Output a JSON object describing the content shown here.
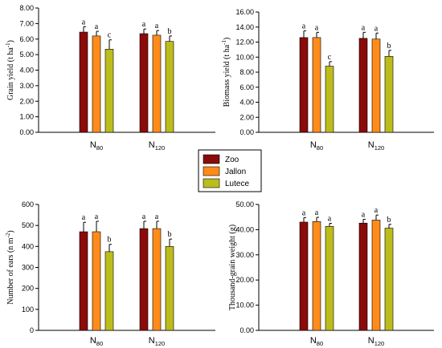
{
  "colors": {
    "Zoo": "#8b0a0a",
    "Jallon": "#ff8c1a",
    "Lutece": "#bcbc1c",
    "error_bar": "#000000",
    "axis": "#000000"
  },
  "legend": {
    "entries": [
      "Zoo",
      "Jallon",
      "Lutece"
    ],
    "placement": "center"
  },
  "chart_data": [
    {
      "type": "bar",
      "panel": "top-left",
      "ylabel": {
        "main": "Grain yield (t ha",
        "sup": "-1",
        "end": ")"
      },
      "ylim": [
        0,
        8
      ],
      "yticks": [
        "0.00",
        "1.00",
        "2.00",
        "3.00",
        "4.00",
        "5.00",
        "6.00",
        "7.00",
        "8.00"
      ],
      "categories": [
        {
          "main": "N",
          "sub": "80"
        },
        {
          "main": "N",
          "sub": "120"
        }
      ],
      "series": [
        {
          "name": "Zoo",
          "values": [
            6.45,
            6.35
          ],
          "errors": [
            0.35,
            0.3
          ],
          "labels": [
            "a",
            "a"
          ]
        },
        {
          "name": "Jallon",
          "values": [
            6.2,
            6.25
          ],
          "errors": [
            0.3,
            0.3
          ],
          "labels": [
            "a",
            "a"
          ]
        },
        {
          "name": "Lutece",
          "values": [
            5.35,
            5.85
          ],
          "errors": [
            0.6,
            0.35
          ],
          "labels": [
            "c",
            "b"
          ]
        }
      ]
    },
    {
      "type": "bar",
      "panel": "top-right",
      "ylabel": {
        "main": "Biomass yield (t ha",
        "sup": "-1",
        "end": ")"
      },
      "ylim": [
        0,
        16
      ],
      "yticks": [
        "0.00",
        "2.00",
        "4.00",
        "6.00",
        "8.00",
        "10.00",
        "12.00",
        "14.00",
        "16.00"
      ],
      "categories": [
        {
          "main": "N",
          "sub": "80"
        },
        {
          "main": "N",
          "sub": "120"
        }
      ],
      "series": [
        {
          "name": "Zoo",
          "values": [
            12.6,
            12.5
          ],
          "errors": [
            0.9,
            0.8
          ],
          "labels": [
            "a",
            "a"
          ]
        },
        {
          "name": "Jallon",
          "values": [
            12.6,
            12.4
          ],
          "errors": [
            0.7,
            0.8
          ],
          "labels": [
            "a",
            "a"
          ]
        },
        {
          "name": "Lutece",
          "values": [
            8.8,
            10.1
          ],
          "errors": [
            0.6,
            0.8
          ],
          "labels": [
            "c",
            "b"
          ]
        }
      ]
    },
    {
      "type": "bar",
      "panel": "bottom-left",
      "ylabel": {
        "main": "Number of ears (n m",
        "sup": "-2",
        "end": ")"
      },
      "ylim": [
        0,
        600
      ],
      "yticks": [
        "0",
        "100",
        "200",
        "300",
        "400",
        "500",
        "600"
      ],
      "categories": [
        {
          "main": "N",
          "sub": "80"
        },
        {
          "main": "N",
          "sub": "120"
        }
      ],
      "series": [
        {
          "name": "Zoo",
          "values": [
            470,
            485
          ],
          "errors": [
            45,
            35
          ],
          "labels": [
            "a",
            "a"
          ]
        },
        {
          "name": "Jallon",
          "values": [
            470,
            485
          ],
          "errors": [
            50,
            35
          ],
          "labels": [
            "a",
            "a"
          ]
        },
        {
          "name": "Lutece",
          "values": [
            375,
            400
          ],
          "errors": [
            35,
            35
          ],
          "labels": [
            "b",
            "b"
          ]
        }
      ]
    },
    {
      "type": "bar",
      "panel": "bottom-right",
      "ylabel": {
        "main": "Thousand-grain weight (g)",
        "sup": "",
        "end": ""
      },
      "ylim": [
        0,
        50
      ],
      "yticks": [
        "0.00",
        "10.00",
        "20.00",
        "30.00",
        "40.00",
        "50.00"
      ],
      "categories": [
        {
          "main": "N",
          "sub": "80"
        },
        {
          "main": "N",
          "sub": "120"
        }
      ],
      "series": [
        {
          "name": "Zoo",
          "values": [
            43.0,
            42.6
          ],
          "errors": [
            1.8,
            1.5
          ],
          "labels": [
            "a",
            "a"
          ]
        },
        {
          "name": "Jallon",
          "values": [
            43.2,
            43.8
          ],
          "errors": [
            1.7,
            2.0
          ],
          "labels": [
            "a",
            "a"
          ]
        },
        {
          "name": "Lutece",
          "values": [
            41.3,
            40.6
          ],
          "errors": [
            1.2,
            1.5
          ],
          "labels": [
            "a",
            "b"
          ]
        }
      ]
    }
  ]
}
